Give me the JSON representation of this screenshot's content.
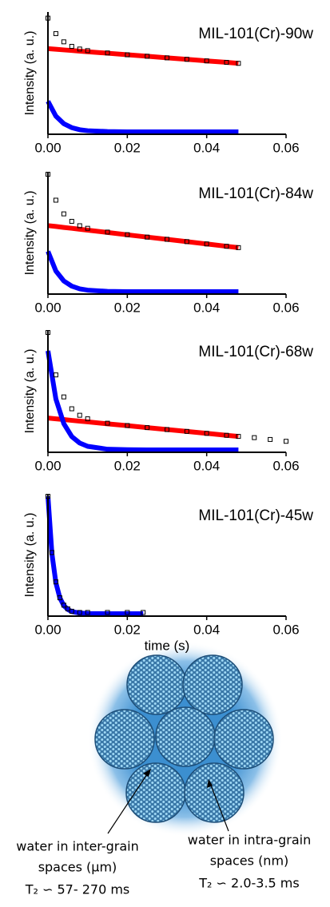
{
  "chart_data": [
    {
      "type": "line",
      "title": "MIL-101(Cr)-90w",
      "y_label": "Intensity (a. u.)",
      "x": [
        0,
        0.002,
        0.004,
        0.006,
        0.008,
        0.01,
        0.015,
        0.02,
        0.025,
        0.03,
        0.035,
        0.04,
        0.045,
        0.048
      ],
      "series": [
        {
          "color": "#000000",
          "mode": "markers",
          "values": [
            0.95,
            0.823,
            0.756,
            0.719,
            0.697,
            0.684,
            0.665,
            0.65,
            0.638,
            0.625,
            0.613,
            0.6,
            0.588,
            0.58
          ]
        },
        {
          "color": "#ff0000",
          "mode": "lines",
          "values": [
            0.7,
            0.695,
            0.69,
            0.685,
            0.68,
            0.675,
            0.663,
            0.65,
            0.638,
            0.625,
            0.613,
            0.6,
            0.588,
            0.58
          ]
        },
        {
          "color": "#0000ff",
          "mode": "lines",
          "values": [
            0.27,
            0.148,
            0.086,
            0.054,
            0.037,
            0.029,
            0.022,
            0.02,
            0.02,
            0.02,
            0.02,
            0.02,
            0.02,
            0.02
          ]
        }
      ],
      "xlim": [
        0,
        0.06
      ],
      "ylim": [
        0,
        1
      ],
      "xticks": [
        {
          "value": 0,
          "label": "0.00"
        },
        {
          "value": 0.02,
          "label": "0.02"
        },
        {
          "value": 0.04,
          "label": "0.04"
        },
        {
          "value": 0.06,
          "label": "0.06"
        }
      ]
    },
    {
      "type": "line",
      "title": "MIL-101(Cr)-84w",
      "y_label": "Intensity (a. u.)",
      "x": [
        0,
        0.002,
        0.004,
        0.006,
        0.008,
        0.01,
        0.015,
        0.02,
        0.025,
        0.03,
        0.035,
        0.04,
        0.045,
        0.048
      ],
      "series": [
        {
          "color": "#000000",
          "mode": "markers",
          "values": [
            0.98,
            0.768,
            0.656,
            0.595,
            0.559,
            0.538,
            0.507,
            0.486,
            0.466,
            0.448,
            0.429,
            0.41,
            0.391,
            0.38
          ]
        },
        {
          "color": "#ff0000",
          "mode": "lines",
          "values": [
            0.56,
            0.553,
            0.545,
            0.538,
            0.53,
            0.523,
            0.504,
            0.485,
            0.466,
            0.448,
            0.429,
            0.41,
            0.391,
            0.38
          ]
        },
        {
          "color": "#0000ff",
          "mode": "lines",
          "values": [
            0.35,
            0.189,
            0.107,
            0.065,
            0.043,
            0.032,
            0.022,
            0.02,
            0.02,
            0.02,
            0.02,
            0.02,
            0.02,
            0.02
          ]
        }
      ],
      "xlim": [
        0,
        0.06
      ],
      "ylim": [
        0,
        1
      ],
      "xticks": [
        {
          "value": 0,
          "label": "0.00"
        },
        {
          "value": 0.02,
          "label": "0.02"
        },
        {
          "value": 0.04,
          "label": "0.04"
        },
        {
          "value": 0.06,
          "label": "0.06"
        }
      ]
    },
    {
      "type": "line",
      "title": "MIL-101(Cr)-68w",
      "y_label": "Intensity (a. u.)",
      "x": [
        0,
        0.002,
        0.004,
        0.006,
        0.008,
        0.01,
        0.015,
        0.02,
        0.025,
        0.03,
        0.035,
        0.04,
        0.045,
        0.048,
        0.052,
        0.056,
        0.06
      ],
      "series": [
        {
          "color": "#000000",
          "mode": "markers",
          "values": [
            0.98,
            0.633,
            0.453,
            0.356,
            0.303,
            0.274,
            0.238,
            0.219,
            0.202,
            0.186,
            0.171,
            0.155,
            0.139,
            0.13,
            0.12,
            0.105,
            0.09
          ]
        },
        {
          "color": "#ff0000",
          "mode": "lines",
          "values": [
            0.28,
            0.274,
            0.268,
            0.261,
            0.255,
            0.249,
            0.233,
            0.218,
            0.202,
            0.186,
            0.171,
            0.155,
            0.139,
            0.13,
            null,
            null,
            null
          ]
        },
        {
          "color": "#0000ff",
          "mode": "lines",
          "values": [
            0.83,
            0.436,
            0.234,
            0.129,
            0.076,
            0.049,
            0.025,
            0.021,
            0.02,
            0.02,
            0.02,
            0.02,
            0.02,
            0.02,
            null,
            null,
            null
          ]
        }
      ],
      "xlim": [
        0,
        0.06
      ],
      "ylim": [
        0,
        1
      ],
      "xticks": [
        {
          "value": 0,
          "label": "0.00"
        },
        {
          "value": 0.02,
          "label": "0.02"
        },
        {
          "value": 0.04,
          "label": "0.04"
        },
        {
          "value": 0.06,
          "label": "0.06"
        }
      ]
    },
    {
      "type": "line",
      "title": "MIL-101(Cr)-45w",
      "y_label": "Intensity (a. u.)",
      "x_label": "time (s)",
      "x": [
        0,
        0.001,
        0.002,
        0.003,
        0.004,
        0.005,
        0.006,
        0.008,
        0.01,
        0.015,
        0.02,
        0.024
      ],
      "series": [
        {
          "color": "#000000",
          "mode": "markers",
          "values": [
            0.98,
            0.52,
            0.28,
            0.15,
            0.09,
            0.06,
            0.04,
            0.03,
            0.03,
            0.03,
            0.03,
            0.03
          ]
        },
        {
          "color": "#0000ff",
          "mode": "lines",
          "values": [
            0.98,
            0.512,
            0.273,
            0.15,
            0.086,
            0.055,
            0.037,
            0.025,
            0.021,
            0.02,
            0.02,
            0.02
          ]
        }
      ],
      "xlim": [
        0,
        0.06
      ],
      "ylim": [
        0,
        1
      ],
      "xticks": [
        {
          "value": 0,
          "label": "0.00"
        },
        {
          "value": 0.02,
          "label": "0.02"
        },
        {
          "value": 0.04,
          "label": "0.04"
        },
        {
          "value": 0.06,
          "label": "0.06"
        }
      ]
    }
  ],
  "diagram": {
    "inter_grain": {
      "lines": [
        "water in inter-grain",
        "spaces (µm)"
      ],
      "t2": "T₂ ∽ 57- 270 ms"
    },
    "intra_grain": {
      "lines": [
        "water in intra-grain",
        "spaces (nm)"
      ],
      "t2": "T₂ ∽ 2.0-3.5 ms"
    }
  }
}
